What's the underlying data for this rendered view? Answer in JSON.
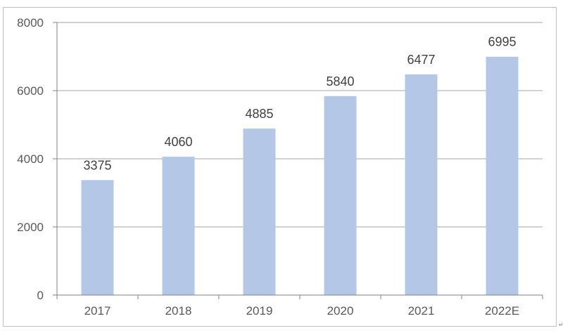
{
  "chart_data": {
    "type": "bar",
    "categories": [
      "2017",
      "2018",
      "2019",
      "2020",
      "2021",
      "2022E"
    ],
    "values": [
      3375,
      4060,
      4885,
      5840,
      6477,
      6995
    ],
    "data_labels": [
      "3375",
      "4060",
      "4885",
      "5840",
      "6477",
      "6995"
    ],
    "y_ticks": [
      "0",
      "2000",
      "4000",
      "6000",
      "8000"
    ],
    "y_tick_values": [
      0,
      2000,
      4000,
      6000,
      8000
    ],
    "ylim": [
      0,
      8000
    ],
    "grid": true,
    "legend": "none",
    "title": "",
    "xlabel": "",
    "ylabel": "",
    "colors": {
      "bar": "#b4c7e7",
      "grid": "#a6a6a6",
      "axis": "#808080"
    }
  },
  "corner_mark": "↵"
}
